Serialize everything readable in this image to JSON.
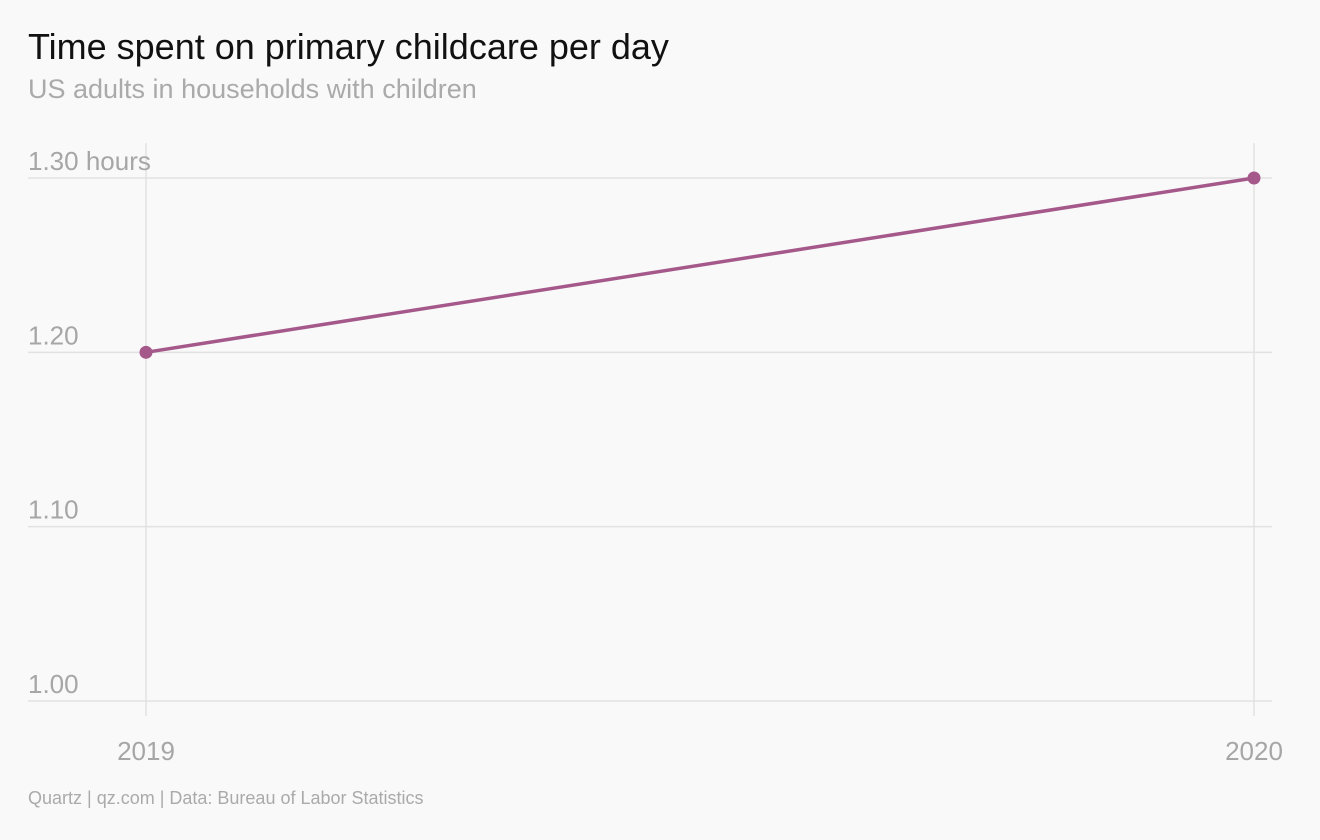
{
  "title": "Time spent on primary childcare per day",
  "subtitle": "US adults in households with children",
  "footer": "Quartz | qz.com | Data: Bureau of Labor Statistics",
  "colors": {
    "line": "#a5588a",
    "grid": "#e2e2e2",
    "text_muted": "#a6a6a6",
    "background": "#f9f9f9"
  },
  "chart_data": {
    "type": "line",
    "title": "Time spent on primary childcare per day",
    "subtitle": "US adults in households with children",
    "x": [
      "2019",
      "2020"
    ],
    "series": [
      {
        "values": [
          1.2,
          1.3
        ]
      }
    ],
    "ylim": [
      1.0,
      1.3
    ],
    "yticks": [
      {
        "value": 1.0,
        "label": "1.00"
      },
      {
        "value": 1.1,
        "label": "1.10"
      },
      {
        "value": 1.2,
        "label": "1.20"
      },
      {
        "value": 1.3,
        "label": "1.30 hours"
      }
    ],
    "xticks": [
      "2019",
      "2020"
    ],
    "grid": true,
    "legend": "none"
  }
}
